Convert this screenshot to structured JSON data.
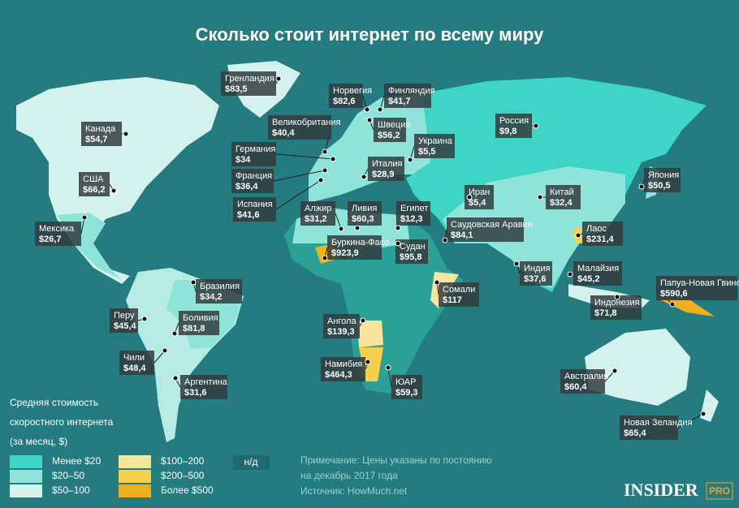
{
  "title": "Сколько стоит интернет по всему миру",
  "labels": [
    {
      "name": "Гренландия",
      "price": "$83,5"
    },
    {
      "name": "Норвегия",
      "price": "$82,6"
    },
    {
      "name": "Финляндия",
      "price": "$41,7"
    },
    {
      "name": "Канада",
      "price": "$54,7"
    },
    {
      "name": "Великобритания",
      "price": "$40,4"
    },
    {
      "name": "Швеция",
      "price": "$56,2"
    },
    {
      "name": "Россия",
      "price": "$9,8"
    },
    {
      "name": "Украина",
      "price": "$5,5"
    },
    {
      "name": "Германия",
      "price": "$34"
    },
    {
      "name": "Италия",
      "price": "$28,9"
    },
    {
      "name": "США",
      "price": "$66,2"
    },
    {
      "name": "Франция",
      "price": "$36,4"
    },
    {
      "name": "Япония",
      "price": "$50,5"
    },
    {
      "name": "Иран",
      "price": "$5,4"
    },
    {
      "name": "Китай",
      "price": "$32,4"
    },
    {
      "name": "Испания",
      "price": "$41,6"
    },
    {
      "name": "Алжир",
      "price": "$31,2"
    },
    {
      "name": "Ливия",
      "price": "$60,3"
    },
    {
      "name": "Египет",
      "price": "$12,3"
    },
    {
      "name": "Мексика",
      "price": "$26,7"
    },
    {
      "name": "Саудовская Аравия",
      "price": "$84,1"
    },
    {
      "name": "Лаос",
      "price": "$231,4"
    },
    {
      "name": "Буркина-Фасо",
      "price": "$923,9"
    },
    {
      "name": "Судан",
      "price": "$95,8"
    },
    {
      "name": "Бразилия",
      "price": "$34,2"
    },
    {
      "name": "Индия",
      "price": "$37,6"
    },
    {
      "name": "Малайзия",
      "price": "$45,2"
    },
    {
      "name": "Папуа-Новая Гвинея",
      "price": "$590,6"
    },
    {
      "name": "Сомали",
      "price": "$117"
    },
    {
      "name": "Индонезия",
      "price": "$71,8"
    },
    {
      "name": "Перу",
      "price": "$45,4"
    },
    {
      "name": "Боливия",
      "price": "$81,8"
    },
    {
      "name": "Ангола",
      "price": "$139,3"
    },
    {
      "name": "Чили",
      "price": "$48,4"
    },
    {
      "name": "Намибия",
      "price": "$464,3"
    },
    {
      "name": "Австралия",
      "price": "$60,4"
    },
    {
      "name": "Аргентина",
      "price": "$31,6"
    },
    {
      "name": "ЮАР",
      "price": "$59,3"
    },
    {
      "name": "Новая Зеландия",
      "price": "$65,4"
    }
  ],
  "legend": {
    "title": [
      "Средняя стоимость",
      "скоростного интернета",
      "(за месяц, $)"
    ],
    "items": [
      {
        "label": "Менее $20",
        "color": "#3fd5c6"
      },
      {
        "label": "$20–50",
        "color": "#8fe4da"
      },
      {
        "label": "$50–100",
        "color": "#d4f2ee"
      },
      {
        "label": "$100–200",
        "color": "#f6e69c"
      },
      {
        "label": "$200–500",
        "color": "#f3cf4c"
      },
      {
        "label": "Более $500",
        "color": "#eeb01c"
      }
    ],
    "na": "н/д"
  },
  "note": [
    "Примечание: Цены указаны по постоянию",
    "на декабрь 2017 года"
  ],
  "source": "Источник: HowMuch.net",
  "logo": {
    "main": "INSIDER",
    "sub": "PRO"
  }
}
